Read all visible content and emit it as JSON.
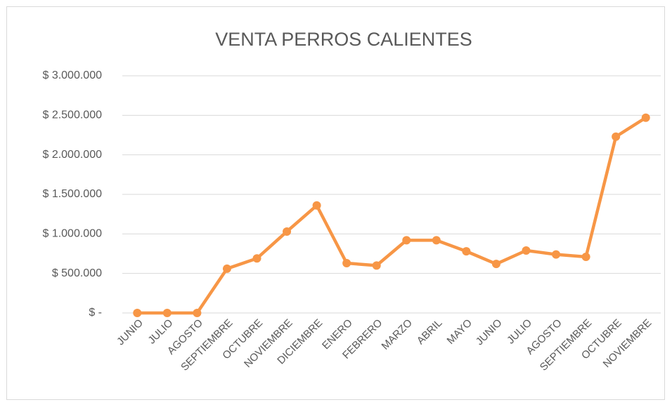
{
  "chart_data": {
    "type": "line",
    "title": "VENTA PERROS CALIENTES",
    "categories": [
      "JUNIO",
      "JULIO",
      "AGOSTO",
      "SEPTIEMBRE",
      "OCTUBRE",
      "NOVIEMBRE",
      "DICIEMBRE",
      "ENERO",
      "FEBRERO",
      "MARZO",
      "ABRIL",
      "MAYO",
      "JUNIO",
      "JULIO",
      "AGOSTO",
      "SEPTIEMBRE",
      "OCTUBRE",
      "NOVIEMBRE"
    ],
    "values": [
      0,
      0,
      0,
      560000,
      690000,
      1030000,
      1360000,
      630000,
      600000,
      920000,
      920000,
      780000,
      620000,
      790000,
      740000,
      710000,
      2230000,
      2470000
    ],
    "color": "#f79646",
    "ylim": [
      0,
      3000000
    ],
    "yticks": [
      {
        "value": 0,
        "label": "$ -"
      },
      {
        "value": 500000,
        "label": "$ 500.000"
      },
      {
        "value": 1000000,
        "label": "$ 1.000.000"
      },
      {
        "value": 1500000,
        "label": "$ 1.500.000"
      },
      {
        "value": 2000000,
        "label": "$ 2.000.000"
      },
      {
        "value": 2500000,
        "label": "$ 2.500.000"
      },
      {
        "value": 3000000,
        "label": "$ 3.000.000"
      }
    ],
    "grid": true
  }
}
